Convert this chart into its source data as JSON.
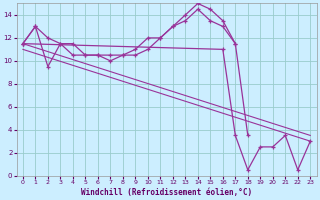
{
  "xlabel": "Windchill (Refroidissement éolien,°C)",
  "background_color": "#cceeff",
  "line_color": "#993399",
  "grid_color": "#99cccc",
  "xlim": [
    -0.5,
    23.5
  ],
  "ylim": [
    0,
    15
  ],
  "yticks": [
    0,
    2,
    4,
    6,
    8,
    10,
    12,
    14
  ],
  "xticks": [
    0,
    1,
    2,
    3,
    4,
    5,
    6,
    7,
    8,
    9,
    10,
    11,
    12,
    13,
    14,
    15,
    16,
    17,
    18,
    19,
    20,
    21,
    22,
    23
  ],
  "hours": [
    0,
    1,
    2,
    3,
    4,
    5,
    6,
    7,
    8,
    9,
    10,
    11,
    12,
    13,
    14,
    15,
    16,
    17,
    18,
    19,
    20,
    21,
    22,
    23
  ],
  "curve1": [
    11.5,
    13.0,
    12.0,
    11.5,
    11.5,
    10.5,
    10.5,
    10.5,
    10.5,
    11.0,
    12.0,
    12.0,
    13.0,
    13.5,
    14.5,
    13.5,
    13.0,
    11.5,
    null,
    null,
    null,
    null,
    null,
    null
  ],
  "curve2": [
    11.5,
    13.0,
    9.5,
    11.5,
    10.5,
    10.5,
    10.5,
    10.0,
    10.5,
    10.5,
    11.0,
    12.0,
    13.0,
    14.0,
    15.0,
    14.5,
    13.5,
    11.5,
    3.5,
    null,
    null,
    null,
    null,
    null
  ],
  "curve3": [
    11.5,
    null,
    null,
    null,
    null,
    null,
    null,
    null,
    null,
    null,
    null,
    null,
    null,
    null,
    null,
    null,
    11.0,
    3.5,
    0.5,
    2.5,
    2.5,
    3.5,
    0.5,
    3.0
  ],
  "trend1": {
    "x": [
      0,
      23
    ],
    "y": [
      11.0,
      3.0
    ]
  },
  "trend2": {
    "x": [
      0,
      23
    ],
    "y": [
      11.5,
      3.5
    ]
  }
}
